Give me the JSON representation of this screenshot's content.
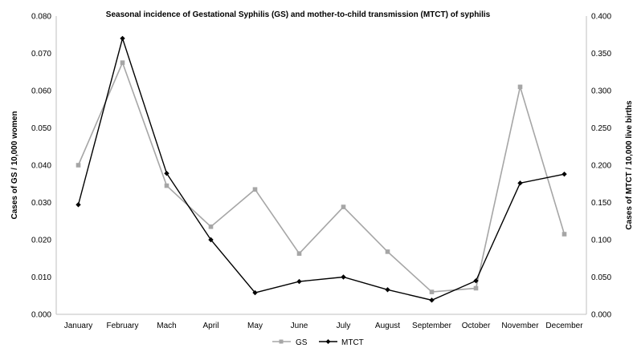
{
  "chart_data": {
    "type": "line",
    "title": "Seasonal incidence of Gestational Syphilis (GS) and mother-to-child transmission (MTCT) of syphilis",
    "categories": [
      "January",
      "February",
      "Mach",
      "April",
      "May",
      "June",
      "July",
      "August",
      "September",
      "October",
      "November",
      "December"
    ],
    "y_left": {
      "label": "Cases of GS / 10,000 women",
      "range": [
        0,
        0.08
      ],
      "ticks": [
        "0.000",
        "0.010",
        "0.020",
        "0.030",
        "0.040",
        "0.050",
        "0.060",
        "0.070",
        "0.080"
      ]
    },
    "y_right": {
      "label": "Cases of MTCT / 10,000 live births",
      "range": [
        0,
        0.4
      ],
      "ticks": [
        "0.000",
        "0.050",
        "0.100",
        "0.150",
        "0.200",
        "0.250",
        "0.300",
        "0.350",
        "0.400"
      ]
    },
    "series": [
      {
        "name": "GS",
        "axis": "left",
        "color": "#a6a6a6",
        "marker": "square",
        "values": [
          0.04,
          0.0675,
          0.0345,
          0.0235,
          0.0335,
          0.0163,
          0.0288,
          0.0168,
          0.006,
          0.007,
          0.061,
          0.0215
        ]
      },
      {
        "name": "MTCT",
        "axis": "right",
        "color": "#000000",
        "marker": "diamond",
        "values": [
          0.147,
          0.37,
          0.189,
          0.1,
          0.029,
          0.044,
          0.05,
          0.033,
          0.019,
          0.045,
          0.176,
          0.188
        ]
      }
    ],
    "grid": false,
    "legend_position": "bottom"
  }
}
